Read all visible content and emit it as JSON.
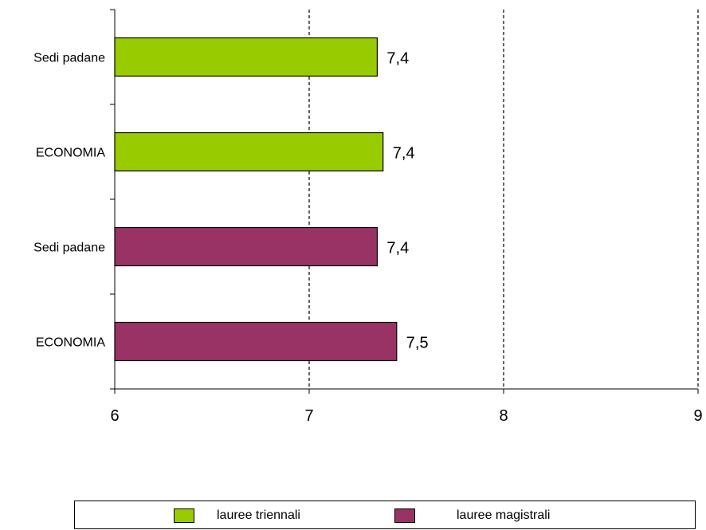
{
  "chart_data": {
    "type": "bar",
    "orientation": "horizontal",
    "categories": [
      "Sedi padane",
      "ECONOMIA",
      "Sedi padane",
      "ECONOMIA"
    ],
    "series": [
      {
        "name": "lauree triennali",
        "color": "#99cc00",
        "values": [
          7.35,
          7.38,
          null,
          null
        ],
        "labels": [
          "7,4",
          "7,4",
          null,
          null
        ]
      },
      {
        "name": "lauree magistrali",
        "color": "#993366",
        "values": [
          null,
          null,
          7.35,
          7.45
        ],
        "labels": [
          null,
          null,
          "7,4",
          "7,5"
        ]
      }
    ],
    "xlim": [
      6,
      9
    ],
    "xticks": [
      6,
      7,
      8,
      9
    ],
    "xtick_labels": [
      "6",
      "7",
      "8",
      "9"
    ],
    "grid": "vertical dashed",
    "legend_position": "bottom"
  }
}
